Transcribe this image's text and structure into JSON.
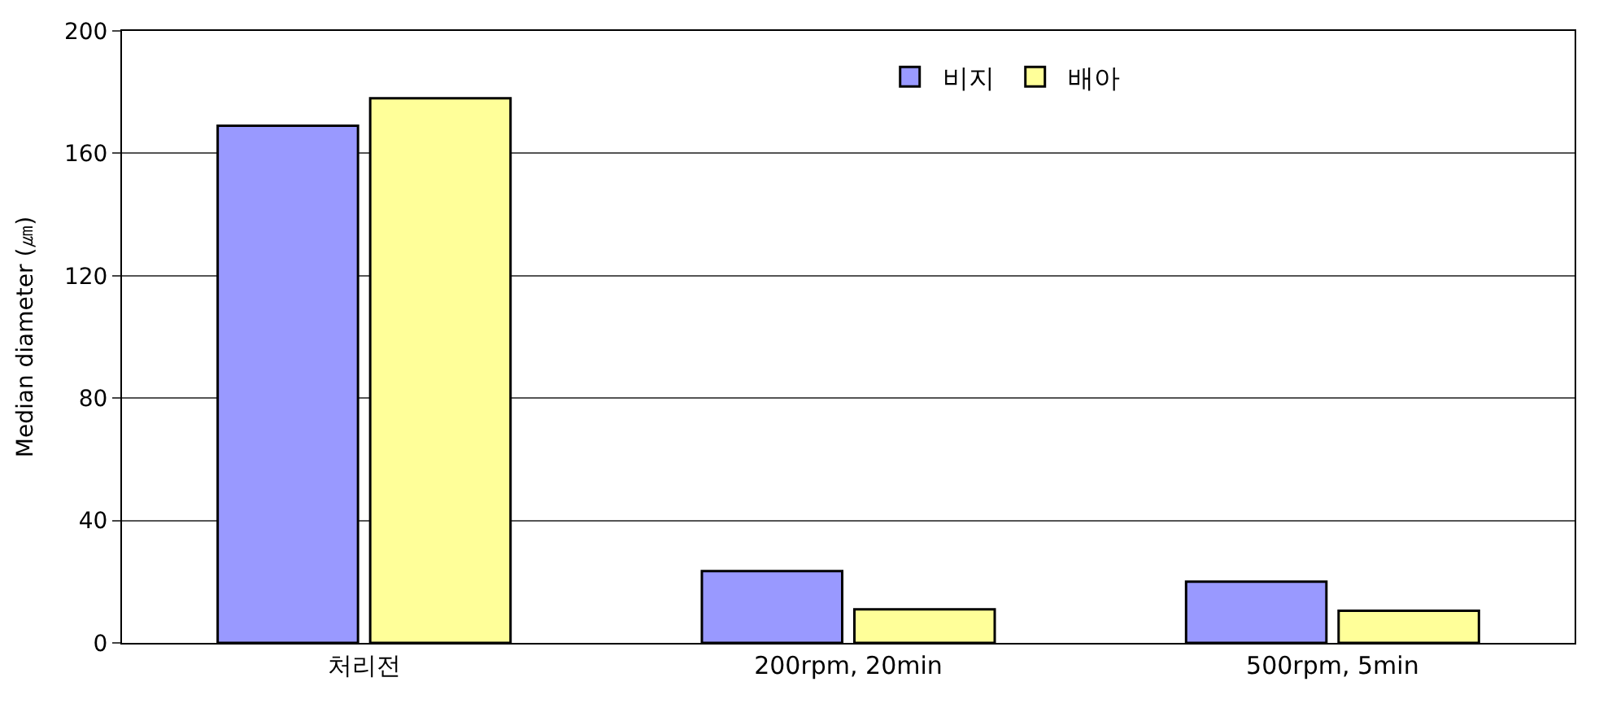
{
  "chart_data": {
    "type": "bar",
    "ylabel": "Median diameter (㎛)",
    "categories": [
      "처리전",
      "200rpm, 20min",
      "500rpm, 5min"
    ],
    "series": [
      {
        "name": "비지",
        "color": "#9999ff",
        "values": [
          169,
          23.5,
          20
        ]
      },
      {
        "name": "배아",
        "color": "#ffff99",
        "values": [
          178,
          11,
          10.5
        ]
      }
    ],
    "ylim": [
      0,
      200
    ],
    "yticks": [
      0,
      40,
      80,
      120,
      160,
      200
    ],
    "grid": "y",
    "legend": "top"
  }
}
